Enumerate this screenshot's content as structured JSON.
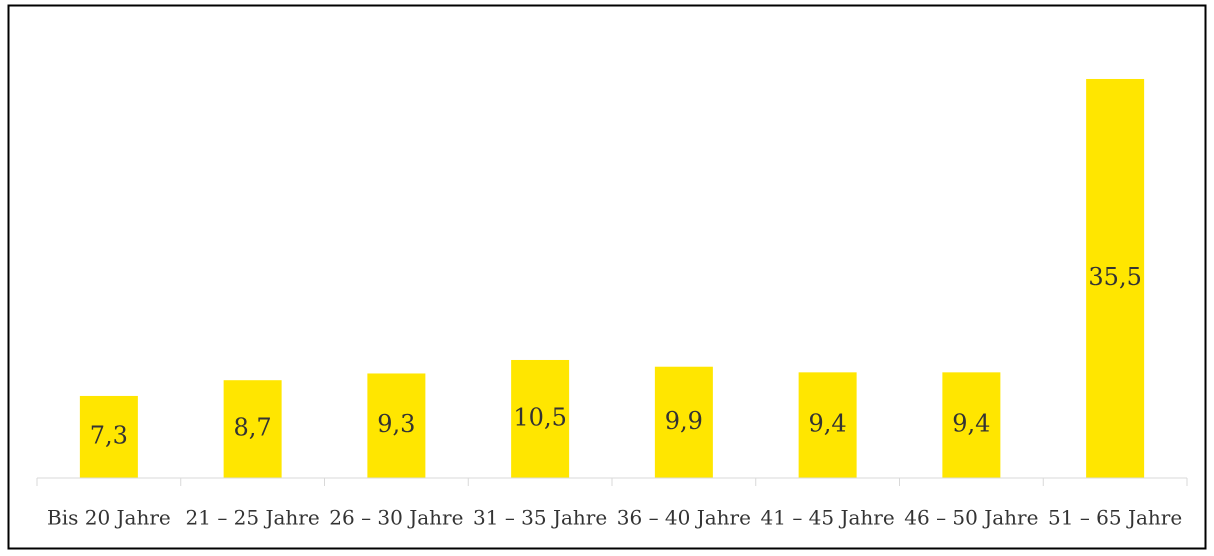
{
  "chart_data": {
    "type": "bar",
    "categories": [
      "Bis 20 Jahre",
      "21 – 25 Jahre",
      "26 – 30 Jahre",
      "31 – 35 Jahre",
      "36 – 40 Jahre",
      "41 – 45 Jahre",
      "46 – 50 Jahre",
      "51 – 65 Jahre"
    ],
    "values": [
      7.3,
      8.7,
      9.3,
      10.5,
      9.9,
      9.4,
      9.4,
      35.5
    ],
    "value_labels": [
      "7,3",
      "8,7",
      "9,3",
      "10,5",
      "9,9",
      "9,4",
      "9,4",
      "35,5"
    ],
    "color": "#ffe600",
    "ylim": [
      0,
      40
    ]
  }
}
